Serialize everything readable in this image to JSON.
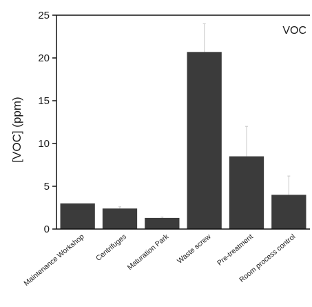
{
  "chart_data": {
    "type": "bar",
    "title": "",
    "annotation": "VOC",
    "xlabel": "",
    "ylabel": "[VOC] (ppm)",
    "ylim": [
      0,
      25
    ],
    "yticks": [
      0,
      5,
      10,
      15,
      20,
      25
    ],
    "grid": false,
    "categories": [
      "Maintenance Workshop",
      "Centrifuges",
      "Maturation Park",
      "Waste screw",
      "Pre-treatment",
      "Room process control"
    ],
    "values": [
      3.0,
      2.4,
      1.3,
      20.7,
      8.5,
      4.0
    ],
    "errors": [
      0.0,
      0.2,
      0.1,
      3.3,
      3.5,
      2.2
    ],
    "colors": {
      "bar": "#3b3b3b",
      "error_bar": "#c8c8c8",
      "axis": "#111111"
    }
  }
}
